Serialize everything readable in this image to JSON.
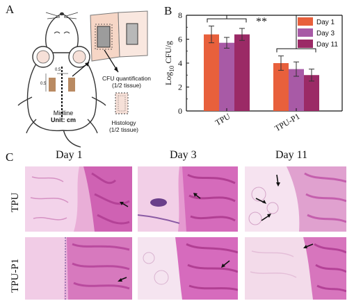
{
  "panels": {
    "a_letter": "A",
    "b_letter": "B",
    "c_letter": "C"
  },
  "schematic": {
    "cfu_label_1": "CFU quantification",
    "cfu_label_2": "(1/2 tissue)",
    "histo_label_1": "Histology",
    "histo_label_2": "(1/2 tissue)",
    "midline": "Midline",
    "unit": "Unit: cm",
    "dim_1": "0.5",
    "dim_2": "0.5"
  },
  "chart_data": {
    "type": "bar",
    "categories": [
      "TPU",
      "TPU-P1"
    ],
    "series": [
      {
        "name": "Day 1",
        "values": [
          6.4,
          4.0
        ],
        "errors": [
          0.7,
          0.6
        ],
        "color": "#e8603c"
      },
      {
        "name": "Day 3",
        "values": [
          5.7,
          3.5
        ],
        "errors": [
          0.45,
          0.6
        ],
        "color": "#a85aa6"
      },
      {
        "name": "Day 11",
        "values": [
          6.4,
          3.0
        ],
        "errors": [
          0.5,
          0.5
        ],
        "color": "#9b2a66"
      }
    ],
    "ylabel": "Log10 CFU/g",
    "ylabel_main": "Log",
    "ylabel_sub": "10",
    "ylabel_unit": " CFU/g",
    "ylim": [
      0,
      8
    ],
    "yticks": [
      "0",
      "2",
      "4",
      "6",
      "8"
    ],
    "significance": "**",
    "legend_position": "top-right"
  },
  "histology": {
    "columns": [
      "Day 1",
      "Day 3",
      "Day 11"
    ],
    "rows": [
      "TPU",
      "TPU-P1"
    ]
  }
}
